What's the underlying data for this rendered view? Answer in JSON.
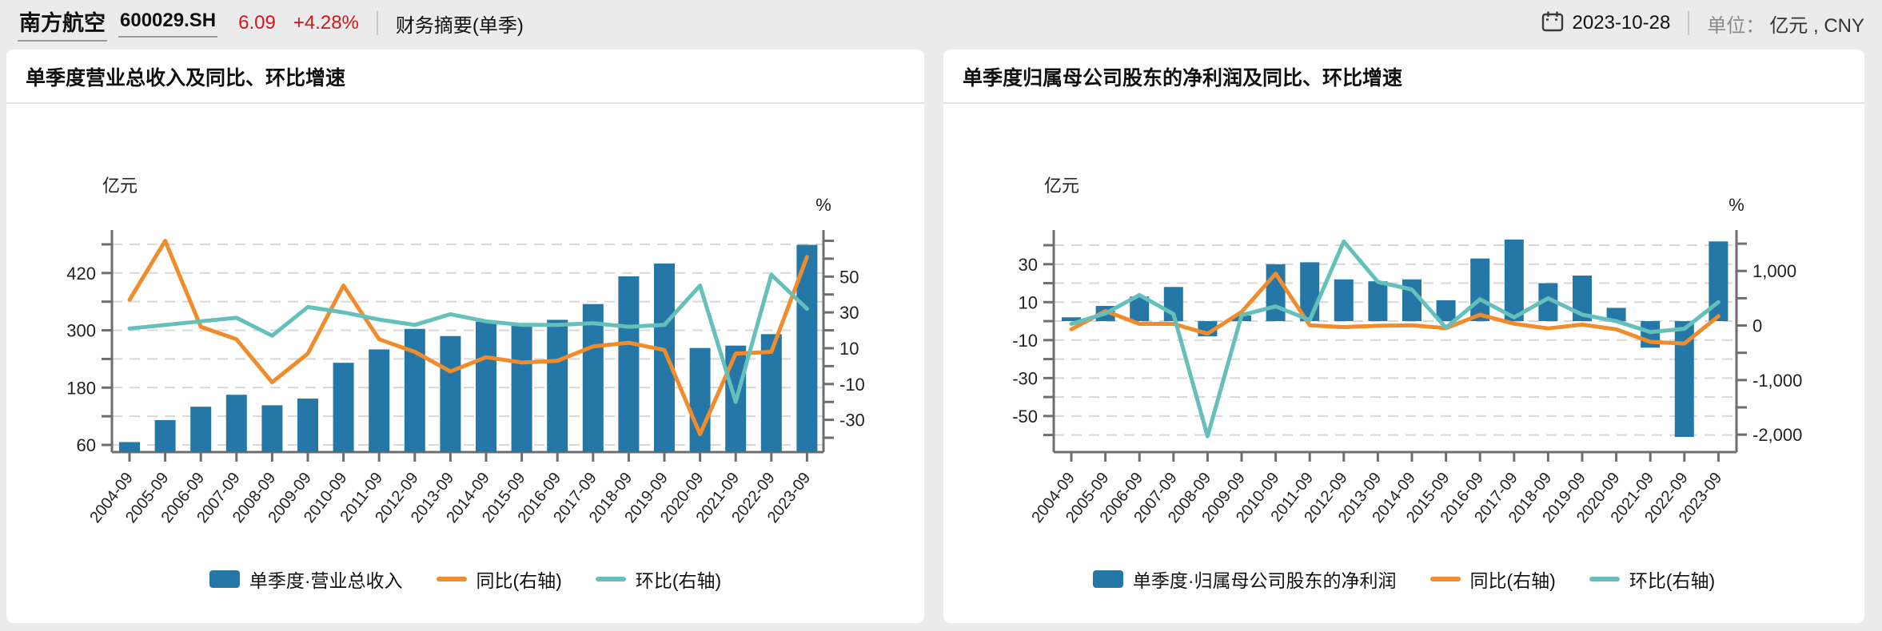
{
  "header": {
    "stock_name": "南方航空",
    "stock_code": "600029.SH",
    "price": "6.09",
    "change": "+4.28%",
    "report_label": "财务摘要(单季)",
    "date": "2023-10-28",
    "unit_label": "单位：",
    "unit_value": "亿元 , CNY",
    "colors": {
      "up_red": "#d0191c"
    }
  },
  "chart_data": [
    {
      "type": "bar-line-dual-axis",
      "title": "单季度营业总收入及同比、环比增速",
      "unit_left": "亿元",
      "unit_right": "%",
      "legend_position": "bottom",
      "grid": "dashed-horizontal",
      "categories": [
        "2004-09",
        "2005-09",
        "2006-09",
        "2007-09",
        "2008-09",
        "2009-09",
        "2010-09",
        "2011-09",
        "2012-09",
        "2013-09",
        "2014-09",
        "2015-09",
        "2016-09",
        "2017-09",
        "2018-09",
        "2019-09",
        "2020-09",
        "2021-09",
        "2022-09",
        "2023-09"
      ],
      "series": [
        {
          "name": "单季度·营业总收入",
          "type": "bar",
          "axis": "left",
          "color": "#2477a6",
          "values": [
            66,
            112,
            140,
            165,
            143,
            157,
            232,
            260,
            303,
            288,
            318,
            312,
            322,
            355,
            413,
            440,
            263,
            268,
            292,
            479
          ]
        },
        {
          "name": "同比(右轴)",
          "type": "line",
          "axis": "right",
          "color": "#f08c2b",
          "values": [
            37,
            70,
            22,
            15,
            -9,
            7,
            45,
            15,
            8,
            -3,
            5,
            2,
            3,
            11,
            13,
            9,
            -38,
            7,
            8,
            61
          ]
        },
        {
          "name": "环比(右轴)",
          "type": "line",
          "axis": "right",
          "color": "#65c0bb",
          "values": [
            21,
            23,
            25,
            27,
            17,
            33,
            30,
            26,
            23,
            29,
            25,
            23,
            23,
            24,
            22,
            23,
            45,
            -20,
            51,
            32
          ]
        }
      ],
      "left_axis": {
        "min": 45,
        "max": 510,
        "grid_ticks": [
          60,
          120,
          180,
          240,
          300,
          360,
          420,
          480
        ],
        "labels": [
          {
            "v": 60,
            "t": "60"
          },
          {
            "v": 180,
            "t": "180"
          },
          {
            "v": 300,
            "t": "300"
          },
          {
            "v": 420,
            "t": "420"
          }
        ]
      },
      "right_axis": {
        "min": -48,
        "max": 76,
        "ticks": [
          -40,
          -30,
          -20,
          -10,
          0,
          10,
          20,
          30,
          40,
          50,
          60,
          70
        ],
        "labels": [
          {
            "v": -30,
            "t": "-30"
          },
          {
            "v": -10,
            "t": "-10"
          },
          {
            "v": 10,
            "t": "10"
          },
          {
            "v": 30,
            "t": "30"
          },
          {
            "v": 50,
            "t": "50"
          }
        ]
      }
    },
    {
      "type": "bar-line-dual-axis",
      "title": "单季度归属母公司股东的净利润及同比、环比增速",
      "unit_left": "亿元",
      "unit_right": "%",
      "legend_position": "bottom",
      "grid": "dashed-horizontal",
      "categories": [
        "2004-09",
        "2005-09",
        "2006-09",
        "2007-09",
        "2008-09",
        "2009-09",
        "2010-09",
        "2011-09",
        "2012-09",
        "2013-09",
        "2014-09",
        "2015-09",
        "2016-09",
        "2017-09",
        "2018-09",
        "2019-09",
        "2020-09",
        "2021-09",
        "2022-09",
        "2023-09"
      ],
      "series": [
        {
          "name": "单季度·归属母公司股东的净利润",
          "type": "bar",
          "axis": "left",
          "color": "#2477a6",
          "values": [
            2,
            8,
            13,
            18,
            -8,
            3,
            30,
            31,
            22,
            21,
            22,
            11,
            33,
            43,
            20,
            24,
            7,
            -14,
            -61,
            42
          ]
        },
        {
          "name": "同比(右轴)",
          "type": "line",
          "axis": "right",
          "color": "#f08c2b",
          "values": [
            -70,
            265,
            30,
            30,
            -150,
            250,
            950,
            3,
            -29,
            -5,
            5,
            -50,
            196,
            32,
            -53,
            17,
            -70,
            -300,
            -330,
            170
          ]
        },
        {
          "name": "环比(右轴)",
          "type": "line",
          "axis": "right",
          "color": "#65c0bb",
          "values": [
            30,
            220,
            560,
            210,
            -2030,
            190,
            350,
            100,
            1540,
            800,
            660,
            -40,
            480,
            150,
            500,
            200,
            80,
            -120,
            -60,
            430
          ]
        }
      ],
      "left_axis": {
        "min": -69,
        "max": 48,
        "grid_ticks": [
          -60,
          -50,
          -40,
          -30,
          -20,
          -10,
          0,
          10,
          20,
          30,
          40
        ],
        "labels": [
          {
            "v": 30,
            "t": "30"
          },
          {
            "v": 10,
            "t": "10"
          },
          {
            "v": -10,
            "t": "-10"
          },
          {
            "v": -30,
            "t": "-30"
          },
          {
            "v": -50,
            "t": "-50"
          }
        ]
      },
      "right_axis": {
        "min": -2320,
        "max": 1750,
        "ticks": [
          -2000,
          -1500,
          -1000,
          -500,
          0,
          500,
          1000,
          1500
        ],
        "labels": [
          {
            "v": 1000,
            "t": "1,000"
          },
          {
            "v": 0,
            "t": "0"
          },
          {
            "v": -1000,
            "t": "-1,000"
          },
          {
            "v": -2000,
            "t": "-2,000"
          }
        ]
      }
    }
  ]
}
